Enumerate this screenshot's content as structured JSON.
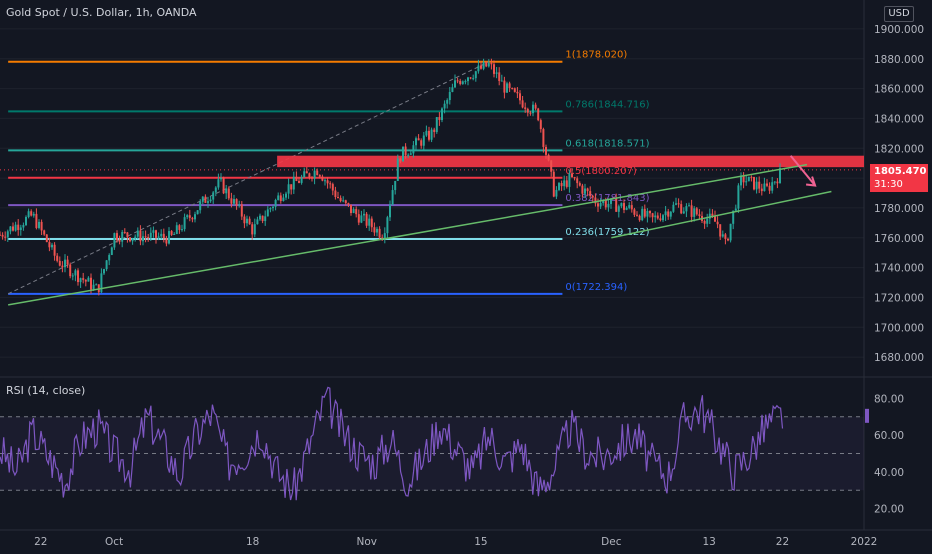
{
  "header": {
    "title": "Gold Spot / U.S. Dollar, 1h, OANDA",
    "currency_button": "USD"
  },
  "rsi_panel": {
    "title": "RSI (14, close)"
  },
  "last_price": {
    "value": "1805.470",
    "countdown": "31:30",
    "color": "#f23645"
  },
  "colors": {
    "background": "#131722",
    "candle_up": "#26a69a",
    "candle_down": "#ef5350",
    "rsi_line": "#7e57c2",
    "trendline": "#66bb6a",
    "resistance_zone": "#f23645"
  },
  "chart_data": [
    {
      "type": "candlestick",
      "title": "Gold Spot / U.S. Dollar, 1h, OANDA",
      "ylabel": "USD",
      "ylim": [
        1670,
        1910
      ],
      "y_ticks": [
        "1680.000",
        "1700.000",
        "1720.000",
        "1740.000",
        "1760.000",
        "1780.000",
        "1800.000",
        "1820.000",
        "1840.000",
        "1860.000",
        "1880.000",
        "1900.000"
      ],
      "x_ticks": [
        "22",
        "Oct",
        "18",
        "Nov",
        "15",
        "Dec",
        "13",
        "22",
        "2022"
      ],
      "approx_path": [
        {
          "date": "2021-09-17",
          "price": 1762
        },
        {
          "date": "2021-09-21",
          "price": 1775
        },
        {
          "date": "2021-09-24",
          "price": 1745
        },
        {
          "date": "2021-09-29",
          "price": 1725
        },
        {
          "date": "2021-10-01",
          "price": 1762
        },
        {
          "date": "2021-10-08",
          "price": 1760
        },
        {
          "date": "2021-10-14",
          "price": 1797
        },
        {
          "date": "2021-10-18",
          "price": 1765
        },
        {
          "date": "2021-10-22",
          "price": 1793
        },
        {
          "date": "2021-10-26",
          "price": 1806
        },
        {
          "date": "2021-10-29",
          "price": 1783
        },
        {
          "date": "2021-11-03",
          "price": 1762
        },
        {
          "date": "2021-11-05",
          "price": 1815
        },
        {
          "date": "2021-11-09",
          "price": 1830
        },
        {
          "date": "2021-11-12",
          "price": 1865
        },
        {
          "date": "2021-11-16",
          "price": 1876
        },
        {
          "date": "2021-11-18",
          "price": 1860
        },
        {
          "date": "2021-11-22",
          "price": 1843
        },
        {
          "date": "2021-11-24",
          "price": 1790
        },
        {
          "date": "2021-11-26",
          "price": 1800
        },
        {
          "date": "2021-11-29",
          "price": 1785
        },
        {
          "date": "2021-12-03",
          "price": 1780
        },
        {
          "date": "2021-12-06",
          "price": 1772
        },
        {
          "date": "2021-12-09",
          "price": 1782
        },
        {
          "date": "2021-12-14",
          "price": 1770
        },
        {
          "date": "2021-12-15",
          "price": 1755
        },
        {
          "date": "2021-12-17",
          "price": 1800
        },
        {
          "date": "2021-12-20",
          "price": 1792
        },
        {
          "date": "2021-12-22",
          "price": 1805
        }
      ],
      "last_price": 1805.47,
      "fibonacci": [
        {
          "label": "1(1878.020)",
          "value": 1878.02,
          "color": "#f57c00"
        },
        {
          "label": "0.786(1844.716)",
          "value": 1844.716,
          "color": "#00796b"
        },
        {
          "label": "0.618(1818.571)",
          "value": 1818.571,
          "color": "#26a69a"
        },
        {
          "label": "0.5(1800.207)",
          "value": 1800.207,
          "color": "#f23645"
        },
        {
          "label": "0.382(1781.843)",
          "value": 1781.843,
          "color": "#7e57c2"
        },
        {
          "label": "0.236(1759.122)",
          "value": 1759.122,
          "color": "#80deea"
        },
        {
          "label": "0(1722.394)",
          "value": 1722.394,
          "color": "#2962ff"
        }
      ],
      "resistance_zone": [
        1810,
        1815
      ],
      "trendlines": [
        {
          "from": {
            "date": "2021-09-18",
            "price": 1715
          },
          "to": {
            "date": "2021-12-25",
            "price": 1809
          }
        },
        {
          "from": {
            "date": "2021-12-01",
            "price": 1760
          },
          "to": {
            "date": "2021-12-28",
            "price": 1791
          }
        }
      ]
    },
    {
      "type": "line",
      "title": "RSI (14, close)",
      "ylim": [
        10,
        90
      ],
      "y_ticks": [
        "20.00",
        "40.00",
        "60.00",
        "80.00"
      ],
      "bands": [
        30,
        50,
        70
      ],
      "approx_values": [
        52,
        40,
        62,
        48,
        35,
        58,
        65,
        50,
        42,
        70,
        55,
        38,
        60,
        72,
        45,
        50,
        63,
        40,
        30,
        55,
        80,
        62,
        50,
        45,
        58,
        35,
        48,
        66,
        52,
        40,
        60,
        45,
        55,
        30,
        42,
        65,
        50,
        48,
        55,
        60,
        45,
        38,
        70,
        75,
        58,
        40,
        50,
        65,
        71
      ]
    }
  ]
}
